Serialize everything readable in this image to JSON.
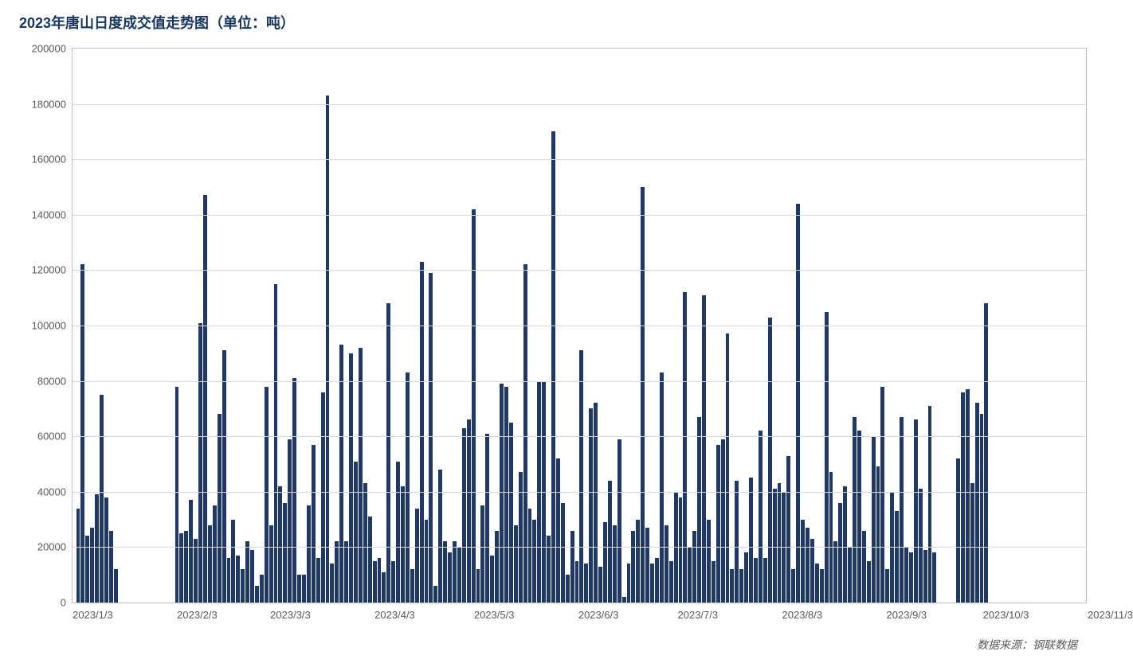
{
  "chart": {
    "type": "bar",
    "title": "2023年唐山日度成交值走势图（单位：吨）",
    "source": "数据来源：钢联数据",
    "title_color": "#17365d",
    "title_fontsize": 18,
    "source_color": "#5a5a5a",
    "source_fontsize": 14,
    "background_color": "#ffffff",
    "bar_color": "#1f3864",
    "grid_color": "#d9d9d9",
    "border_color": "#bfbfbf",
    "axis_label_color": "#595959",
    "axis_fontsize": 13,
    "ylim": [
      0,
      200000
    ],
    "ytick_step": 20000,
    "yticks": [
      0,
      20000,
      40000,
      60000,
      80000,
      100000,
      120000,
      140000,
      160000,
      180000,
      200000
    ],
    "x_labels": [
      "2023/1/3",
      "2023/2/3",
      "2023/3/3",
      "2023/4/3",
      "2023/5/3",
      "2023/6/3",
      "2023/7/3",
      "2023/8/3",
      "2023/9/3",
      "2023/10/3",
      "2023/11/3"
    ],
    "x_label_positions_pct": [
      2.0,
      12.3,
      21.5,
      31.8,
      41.6,
      51.9,
      61.7,
      72.0,
      82.3,
      92.1,
      102.4
    ],
    "values": [
      34000,
      122000,
      24000,
      27000,
      39000,
      75000,
      38000,
      26000,
      12000,
      0,
      0,
      0,
      0,
      0,
      0,
      0,
      0,
      0,
      0,
      0,
      0,
      78000,
      25000,
      26000,
      37000,
      23000,
      101000,
      147000,
      28000,
      35000,
      68000,
      91000,
      16000,
      30000,
      17000,
      12000,
      22000,
      19000,
      6000,
      10000,
      78000,
      28000,
      115000,
      42000,
      36000,
      59000,
      81000,
      10000,
      10000,
      35000,
      57000,
      16000,
      76000,
      183000,
      14000,
      22000,
      93000,
      22000,
      90000,
      51000,
      92000,
      43000,
      31000,
      15000,
      16000,
      11000,
      108000,
      15000,
      51000,
      42000,
      83000,
      12000,
      34000,
      123000,
      30000,
      119000,
      6000,
      48000,
      22000,
      18000,
      22000,
      20000,
      63000,
      66000,
      142000,
      12000,
      35000,
      61000,
      17000,
      26000,
      79000,
      78000,
      65000,
      28000,
      47000,
      122000,
      34000,
      30000,
      80000,
      80000,
      24000,
      170000,
      52000,
      36000,
      10000,
      26000,
      15000,
      91000,
      14000,
      70000,
      72000,
      13000,
      29000,
      44000,
      28000,
      59000,
      2000,
      14000,
      26000,
      30000,
      150000,
      27000,
      14000,
      16000,
      83000,
      28000,
      15000,
      40000,
      38000,
      112000,
      20000,
      26000,
      67000,
      111000,
      30000,
      15000,
      57000,
      59000,
      97000,
      12000,
      44000,
      12000,
      18000,
      45000,
      16000,
      62000,
      16000,
      103000,
      41000,
      43000,
      40000,
      53000,
      12000,
      144000,
      30000,
      27000,
      23000,
      14000,
      12000,
      105000,
      47000,
      22000,
      36000,
      42000,
      20000,
      67000,
      62000,
      26000,
      15000,
      60000,
      49000,
      78000,
      12000,
      40000,
      33000,
      67000,
      20000,
      18000,
      66000,
      41000,
      19000,
      71000,
      18000,
      0,
      0,
      0,
      0,
      52000,
      76000,
      77000,
      43000,
      72000,
      68000,
      108000,
      0,
      0,
      0,
      0,
      0,
      0,
      0,
      0,
      0,
      0,
      0,
      0,
      0,
      0,
      0,
      0,
      0,
      0,
      0,
      0
    ]
  }
}
